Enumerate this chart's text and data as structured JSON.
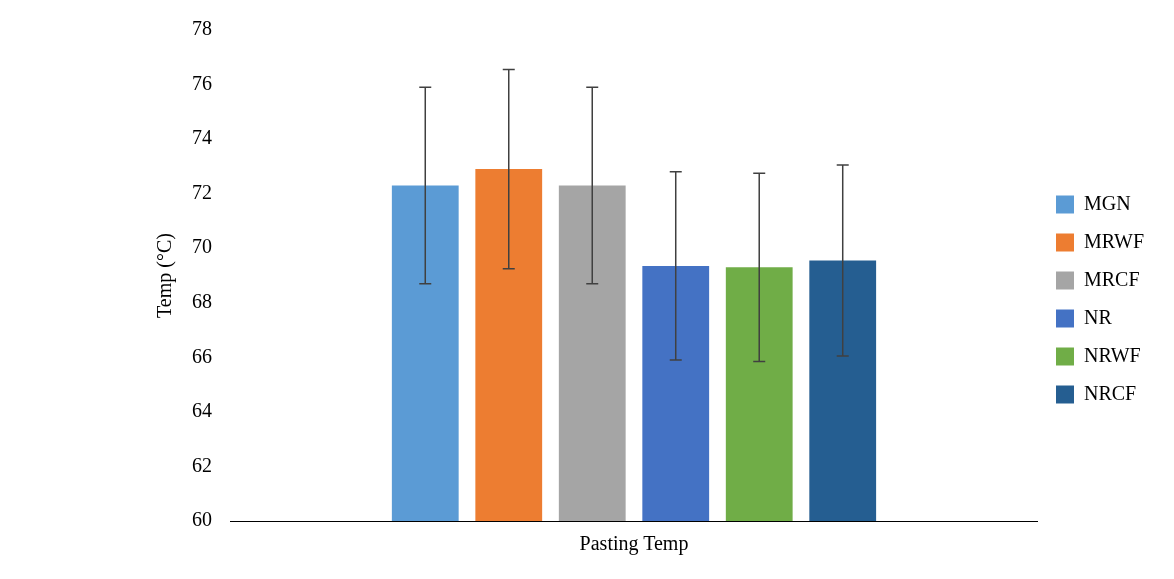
{
  "chart_data": {
    "type": "bar",
    "categories": [
      "Pasting Temp"
    ],
    "ylabel": "Temp (°C)",
    "ylim": [
      60,
      78
    ],
    "yticks": [
      60,
      62,
      64,
      66,
      68,
      70,
      72,
      74,
      76,
      78
    ],
    "grid": false,
    "legend": "right",
    "series": [
      {
        "name": "MGN",
        "color": "#5b9bd5",
        "values": [
          72.3
        ],
        "errors": [
          3.6
        ]
      },
      {
        "name": "MRWF",
        "color": "#ed7d31",
        "values": [
          72.9
        ],
        "errors": [
          3.65
        ]
      },
      {
        "name": "MRCF",
        "color": "#a5a5a5",
        "values": [
          72.3
        ],
        "errors": [
          3.6
        ]
      },
      {
        "name": "NR",
        "color": "#4472c4",
        "values": [
          69.35
        ],
        "errors": [
          3.45
        ]
      },
      {
        "name": "NRWF",
        "color": "#70ad47",
        "values": [
          69.3
        ],
        "errors": [
          3.45
        ]
      },
      {
        "name": "NRCF",
        "color": "#255e91",
        "values": [
          69.55
        ],
        "errors": [
          3.5
        ]
      }
    ]
  }
}
